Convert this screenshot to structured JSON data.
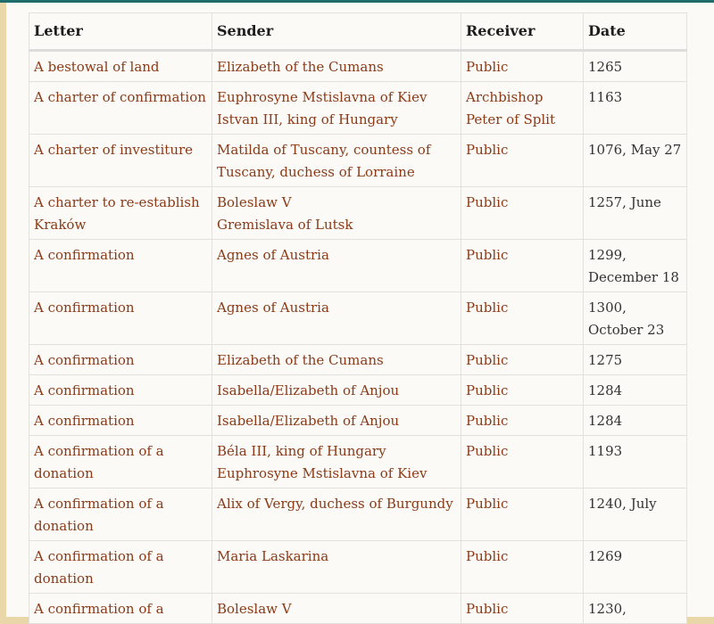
{
  "colors": {
    "link": "#8b3a16",
    "topbar": "#1f6d6a",
    "side": "#e9d6a9"
  },
  "headers": [
    "Letter",
    "Sender",
    "Receiver",
    "Date"
  ],
  "rows": [
    {
      "letter": "A bestowal of land",
      "senders": [
        "Elizabeth of the Cumans"
      ],
      "receiver": "Public",
      "date": "1265"
    },
    {
      "letter": "A charter of confirmation",
      "senders": [
        "Euphrosyne Mstislavna of Kiev",
        "Istvan III, king of Hungary"
      ],
      "receiver": "Archbishop Peter of Split",
      "date": "1163"
    },
    {
      "letter": "A charter of investiture",
      "senders": [
        "Matilda of Tuscany, countess of Tuscany, duchess of Lorraine"
      ],
      "receiver": "Public",
      "date": "1076, May 27"
    },
    {
      "letter": "A charter to re-establish Kraków",
      "senders": [
        "Boleslaw V",
        "Gremislava of Lutsk"
      ],
      "receiver": "Public",
      "date": "1257, June"
    },
    {
      "letter": "A confirmation",
      "senders": [
        "Agnes of Austria"
      ],
      "receiver": "Public",
      "date": "1299, December 18"
    },
    {
      "letter": "A confirmation",
      "senders": [
        "Agnes of Austria"
      ],
      "receiver": "Public",
      "date": "1300, October 23"
    },
    {
      "letter": "A confirmation",
      "senders": [
        "Elizabeth of the Cumans"
      ],
      "receiver": "Public",
      "date": "1275"
    },
    {
      "letter": "A confirmation",
      "senders": [
        "Isabella/Elizabeth of Anjou"
      ],
      "receiver": "Public",
      "date": "1284"
    },
    {
      "letter": "A confirmation",
      "senders": [
        "Isabella/Elizabeth of Anjou"
      ],
      "receiver": "Public",
      "date": "1284"
    },
    {
      "letter": "A confirmation of a donation",
      "senders": [
        "Béla III, king of Hungary",
        "Euphrosyne Mstislavna of Kiev"
      ],
      "receiver": "Public",
      "date": "1193"
    },
    {
      "letter": "A confirmation of a donation",
      "senders": [
        "Alix of Vergy, duchess of Burgundy"
      ],
      "receiver": "Public",
      "date": "1240, July"
    },
    {
      "letter": "A confirmation of a donation",
      "senders": [
        "Maria Laskarina"
      ],
      "receiver": "Public",
      "date": "1269"
    },
    {
      "letter": "A confirmation of a",
      "senders": [
        "Boleslaw V"
      ],
      "receiver": "Public",
      "date": "1230,"
    }
  ]
}
